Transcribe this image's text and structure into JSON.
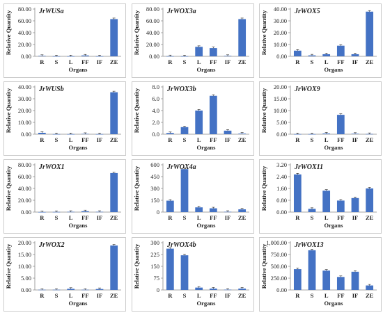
{
  "chart_data": [
    {
      "type": "bar",
      "title": "JrWUSa",
      "xlabel": "Organs",
      "ylabel": "Relative Quantity",
      "categories": [
        "R",
        "S",
        "L",
        "FF",
        "IF",
        "ZE"
      ],
      "values": [
        0.8,
        0.2,
        0.2,
        1.5,
        0.2,
        63
      ],
      "ylim": [
        0,
        80
      ],
      "yticks": [
        "0.00",
        "20.00",
        "40.00",
        "60.00",
        "80.00"
      ],
      "error_bars": true
    },
    {
      "type": "bar",
      "title": "JrWOX3a",
      "xlabel": "Organs",
      "ylabel": "Relative Quantity",
      "categories": [
        "R",
        "S",
        "L",
        "FF",
        "IF",
        "ZE"
      ],
      "values": [
        0.3,
        0.2,
        16,
        14,
        0.8,
        63
      ],
      "ylim": [
        0,
        80
      ],
      "yticks": [
        "0.00",
        "20.00",
        "40.00",
        "60.00",
        "80.00"
      ],
      "error_bars": true
    },
    {
      "type": "bar",
      "title": "JrWOX5",
      "xlabel": "Organs",
      "ylabel": "Relative Quantity",
      "categories": [
        "R",
        "S",
        "L",
        "FF",
        "IF",
        "ZE"
      ],
      "values": [
        4.8,
        0.8,
        1.8,
        9,
        1.8,
        37.8
      ],
      "ylim": [
        0,
        40
      ],
      "yticks": [
        "0.00",
        "10.00",
        "20.00",
        "30.00",
        "40.00"
      ],
      "error_bars": true
    },
    {
      "type": "bar",
      "title": "JrWUSb",
      "xlabel": "Organs",
      "ylabel": "Relative Quantity",
      "categories": [
        "R",
        "S",
        "L",
        "FF",
        "IF",
        "ZE"
      ],
      "values": [
        1.2,
        0.1,
        0.1,
        0.3,
        0.1,
        35.5
      ],
      "ylim": [
        0,
        40
      ],
      "yticks": [
        "0.00",
        "10.00",
        "20.00",
        "30.00",
        "40.00"
      ],
      "error_bars": true
    },
    {
      "type": "bar",
      "title": "JrWOX3b",
      "xlabel": "Organs",
      "ylabel": "Relative Quantity",
      "categories": [
        "R",
        "S",
        "L",
        "FF",
        "IF",
        "ZE"
      ],
      "values": [
        0.2,
        1.2,
        4,
        6.5,
        0.6,
        0.1
      ],
      "ylim": [
        0,
        8
      ],
      "yticks": [
        "0.0",
        "2.0",
        "4.0",
        "6.0",
        "8.0"
      ],
      "error_bars": true
    },
    {
      "type": "bar",
      "title": "JrWOX9",
      "xlabel": "Organs",
      "ylabel": "Relative Quantity",
      "categories": [
        "R",
        "S",
        "L",
        "FF",
        "IF",
        "ZE"
      ],
      "values": [
        0.05,
        0.05,
        0.3,
        8.2,
        0.2,
        0.1
      ],
      "ylim": [
        0,
        20
      ],
      "yticks": [
        "0.00",
        "5.00",
        "10.00",
        "15.00",
        "20.00"
      ],
      "error_bars": true
    },
    {
      "type": "bar",
      "title": "JrWOX1",
      "xlabel": "Organs",
      "ylabel": "Relative Quantity",
      "categories": [
        "R",
        "S",
        "L",
        "FF",
        "IF",
        "ZE"
      ],
      "values": [
        0.1,
        0.3,
        0.5,
        1.5,
        0.5,
        66
      ],
      "ylim": [
        0,
        80
      ],
      "yticks": [
        "0.00",
        "20.00",
        "40.00",
        "60.00",
        "80.00"
      ],
      "error_bars": true
    },
    {
      "type": "bar",
      "title": "JrWOX4a",
      "xlabel": "Organs",
      "ylabel": "Relative Quantity",
      "categories": [
        "R",
        "S",
        "L",
        "FF",
        "IF",
        "ZE"
      ],
      "values": [
        145,
        545,
        60,
        48,
        4,
        35
      ],
      "ylim": [
        0,
        600
      ],
      "yticks": [
        "0",
        "150",
        "300",
        "450",
        "600"
      ],
      "error_bars": true
    },
    {
      "type": "bar",
      "title": "JrWOX11",
      "xlabel": "Organs",
      "ylabel": "Relative Quantity",
      "categories": [
        "R",
        "S",
        "L",
        "FF",
        "IF",
        "ZE"
      ],
      "values": [
        2.55,
        0.22,
        1.45,
        0.78,
        0.95,
        1.6
      ],
      "ylim": [
        0,
        3.2
      ],
      "yticks": [
        "0.00",
        "0.80",
        "1.60",
        "2.40",
        "3.20"
      ],
      "error_bars": true
    },
    {
      "type": "bar",
      "title": "JrWOX2",
      "xlabel": "Organs",
      "ylabel": "Relative Quantity",
      "categories": [
        "R",
        "S",
        "L",
        "FF",
        "IF",
        "ZE"
      ],
      "values": [
        0.1,
        0.1,
        0.5,
        0.1,
        0.4,
        18.8
      ],
      "ylim": [
        0,
        20
      ],
      "yticks": [
        "0.00",
        "5.00",
        "10.00",
        "15.00",
        "20.00"
      ],
      "error_bars": true
    },
    {
      "type": "bar",
      "title": "JrWOX4b",
      "xlabel": "Organs",
      "ylabel": "Relative Quantity",
      "categories": [
        "R",
        "S",
        "L",
        "FF",
        "IF",
        "ZE"
      ],
      "values": [
        262,
        220,
        15,
        9,
        2,
        9
      ],
      "ylim": [
        0,
        300
      ],
      "yticks": [
        "0",
        "75",
        "150",
        "225",
        "300"
      ],
      "error_bars": true
    },
    {
      "type": "bar",
      "title": "JrWOX13",
      "xlabel": "Organs",
      "ylabel": "Relative Quantity",
      "categories": [
        "R",
        "S",
        "L",
        "FF",
        "IF",
        "ZE"
      ],
      "values": [
        440,
        840,
        410,
        275,
        385,
        95
      ],
      "ylim": [
        0,
        1000
      ],
      "yticks": [
        "0.00",
        "250.00",
        "500.00",
        "750.00",
        "1,000.00"
      ],
      "error_bars": true
    }
  ],
  "colors": {
    "bar": "#4472c4",
    "axis": "#888888",
    "text": "#222222",
    "border": "#bfbfbf",
    "error": "#222222"
  }
}
